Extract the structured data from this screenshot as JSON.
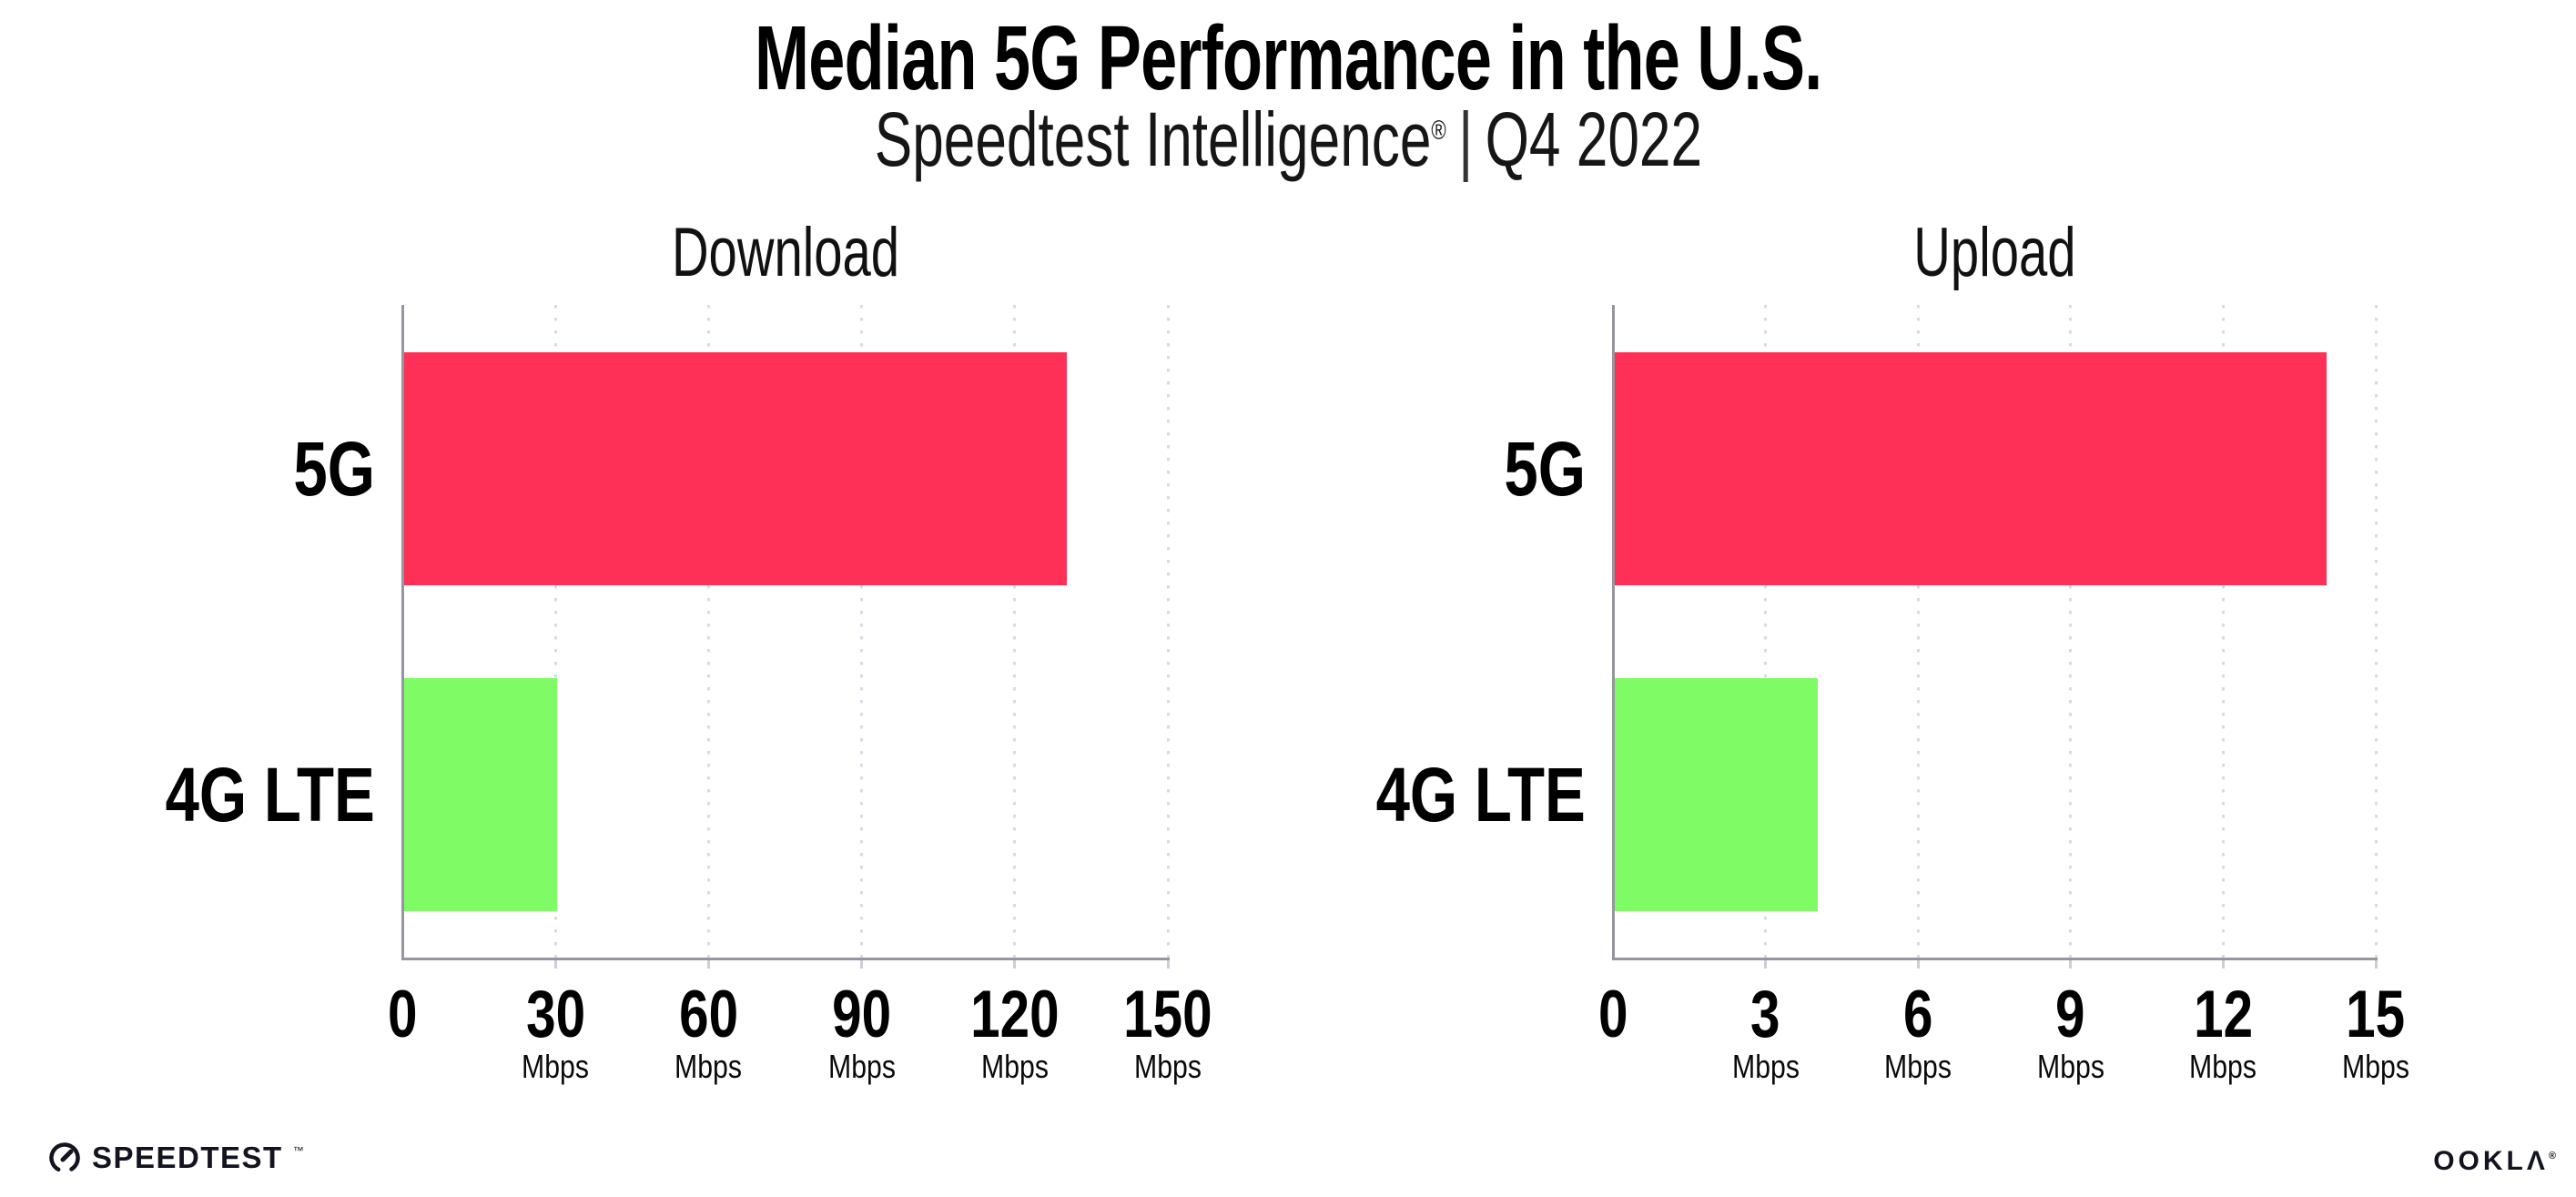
{
  "header": {
    "title": "Median 5G Performance in the U.S.",
    "subtitle_brand": "Speedtest Intelligence",
    "subtitle_reg": "®",
    "subtitle_sep": "|",
    "subtitle_period": "Q4 2022"
  },
  "chart_data": [
    {
      "type": "bar",
      "orientation": "horizontal",
      "title": "Download",
      "categories": [
        "5G",
        "4G LTE"
      ],
      "values": [
        130,
        30
      ],
      "value_unit": "Mbps",
      "xlim": [
        0,
        150
      ],
      "xticks": [
        0,
        30,
        60,
        90,
        120,
        150
      ],
      "xtick_unit": "Mbps",
      "bar_colors": [
        "#FF3057",
        "#7EFB65"
      ],
      "grid": "vertical-dotted",
      "legend": "none"
    },
    {
      "type": "bar",
      "orientation": "horizontal",
      "title": "Upload",
      "categories": [
        "5G",
        "4G LTE"
      ],
      "values": [
        14,
        4
      ],
      "value_unit": "Mbps",
      "xlim": [
        0,
        15
      ],
      "xticks": [
        0,
        3,
        6,
        9,
        12,
        15
      ],
      "xtick_unit": "Mbps",
      "bar_colors": [
        "#FF3057",
        "#7EFB65"
      ],
      "grid": "vertical-dotted",
      "legend": "none"
    }
  ],
  "footer": {
    "speedtest_label": "SPEEDTEST",
    "speedtest_tm": "™",
    "ookla_label": "OOKLΛ",
    "ookla_reg": "®"
  },
  "colors": {
    "bar_5g": "#FF3057",
    "bar_4g_lte": "#7EFB65",
    "axis": "#95979e",
    "gridline": "#d9dbe4",
    "text": "#000000"
  }
}
